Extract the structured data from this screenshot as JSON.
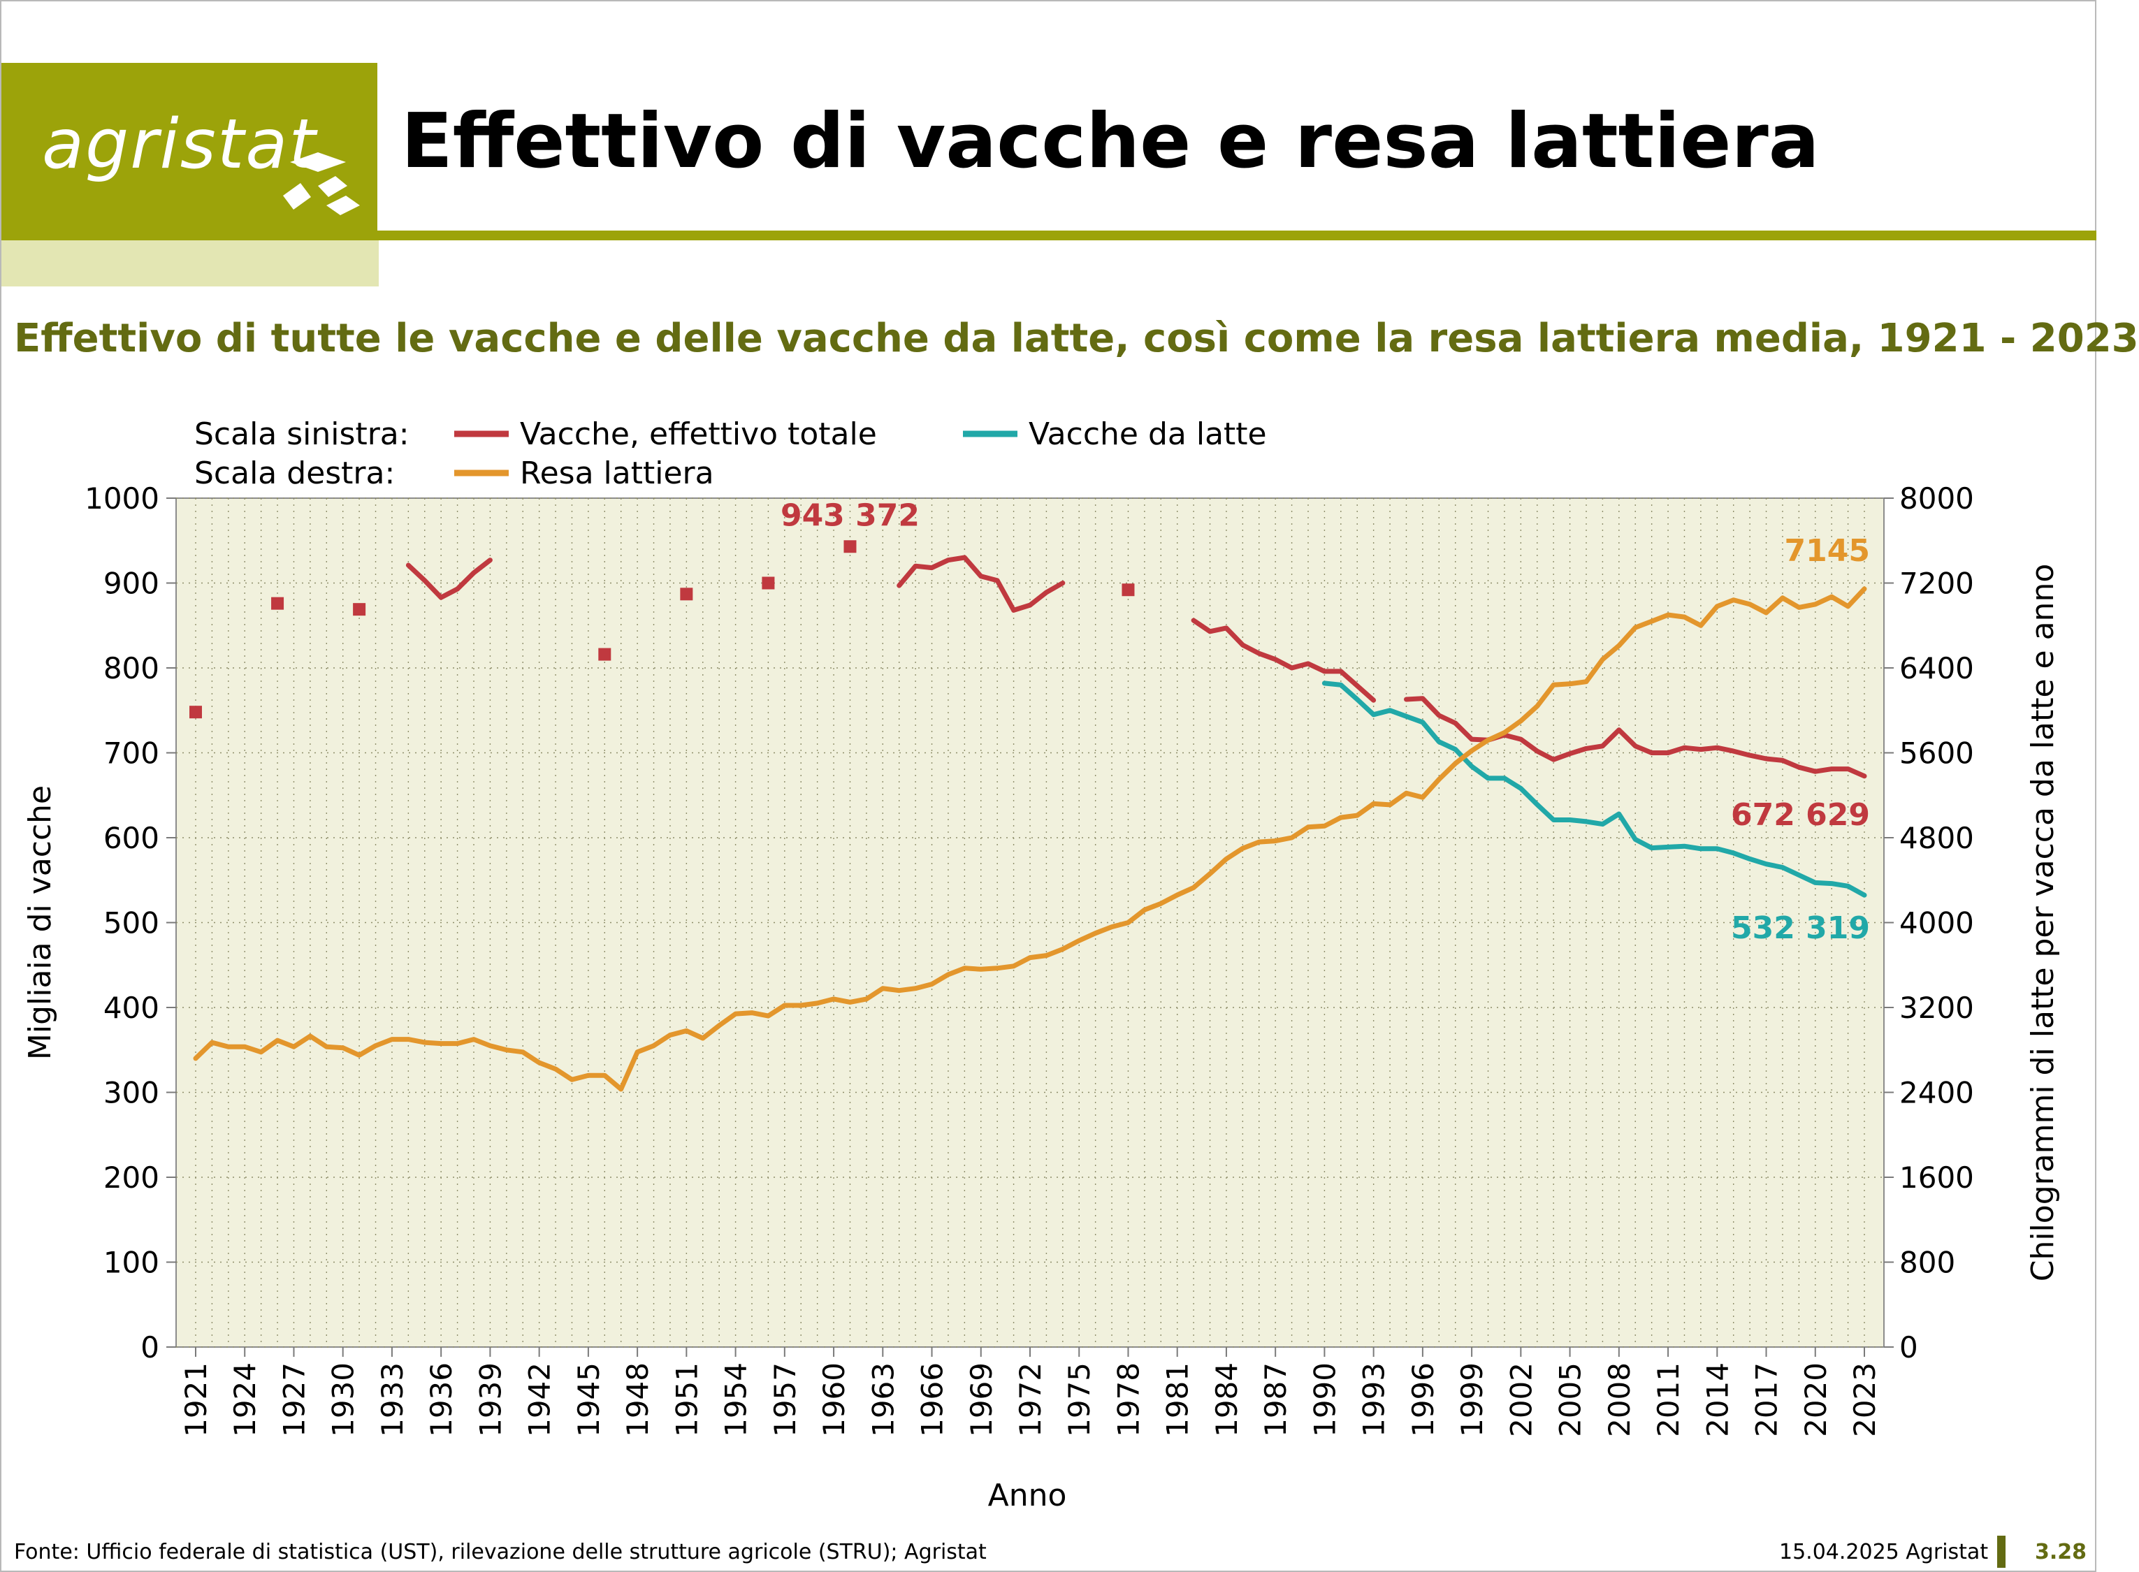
{
  "header": {
    "logo_text": "agristat",
    "title": "Effettivo di vacche e resa lattiera"
  },
  "colors": {
    "brand_olive": "#9ca30a",
    "title_green": "#636b12",
    "plot_bg": "#f1f1dd",
    "series_total": "#c0393f",
    "series_dairy": "#21a8a8",
    "series_yield": "#e3962c"
  },
  "footer": {
    "source": "Fonte: Ufficio federale di statistica (UST), rilevazione delle strutture agricole (STRU); Agristat",
    "date": "15.04.2025 Agristat",
    "page": "3.28"
  },
  "chart_data": {
    "type": "line",
    "title": "Effettivo di tutte le vacche e delle vacche da latte, così come la resa lattiera media, 1921 - 2023",
    "legend": {
      "left_scale_label": "Scala sinistra:",
      "right_scale_label": "Scala destra:"
    },
    "xlabel": "Anno",
    "ylabel_left": "Migliaia di vacche",
    "ylabel_right": "Chilogrammi di latte per vacca da latte e anno",
    "x_range": [
      1921,
      2023
    ],
    "x_ticks": [
      "1921",
      "1924",
      "1927",
      "1930",
      "1933",
      "1936",
      "1939",
      "1942",
      "1945",
      "1948",
      "1951",
      "1954",
      "1957",
      "1960",
      "1963",
      "1966",
      "1969",
      "1972",
      "1975",
      "1978",
      "1981",
      "1984",
      "1987",
      "1990",
      "1993",
      "1996",
      "1999",
      "2002",
      "2005",
      "2008",
      "2011",
      "2014",
      "2017",
      "2020",
      "2023"
    ],
    "y_left": {
      "min": 0,
      "max": 1000,
      "ticks": [
        "0",
        "100",
        "200",
        "300",
        "400",
        "500",
        "600",
        "700",
        "800",
        "900",
        "1000"
      ]
    },
    "y_right": {
      "min": 0,
      "max": 8000,
      "ticks": [
        "0",
        "800",
        "1600",
        "2400",
        "3200",
        "4000",
        "4800",
        "5600",
        "6400",
        "7200",
        "8000"
      ]
    },
    "grid": true,
    "series": [
      {
        "name": "Vacche, effettivo totale",
        "axis": "left",
        "color": "#c0393f",
        "points": [
          [
            1921,
            748
          ],
          [
            1926,
            876
          ],
          [
            1931,
            869
          ],
          [
            1934,
            921
          ],
          [
            1935,
            903
          ],
          [
            1936,
            883
          ],
          [
            1937,
            893
          ],
          [
            1938,
            912
          ],
          [
            1939,
            927
          ],
          [
            1946,
            816
          ],
          [
            1951,
            887
          ],
          [
            1956,
            900
          ],
          [
            1961,
            943
          ],
          [
            1964,
            897
          ],
          [
            1965,
            920
          ],
          [
            1966,
            918
          ],
          [
            1967,
            927
          ],
          [
            1968,
            930
          ],
          [
            1969,
            908
          ],
          [
            1970,
            903
          ],
          [
            1971,
            868
          ],
          [
            1972,
            874
          ],
          [
            1973,
            889
          ],
          [
            1974,
            900
          ],
          [
            1978,
            892
          ],
          [
            1982,
            856
          ],
          [
            1983,
            843
          ],
          [
            1984,
            847
          ],
          [
            1985,
            827
          ],
          [
            1986,
            817
          ],
          [
            1987,
            810
          ],
          [
            1988,
            800
          ],
          [
            1989,
            805
          ],
          [
            1990,
            796
          ],
          [
            1991,
            796
          ],
          [
            1992,
            779
          ],
          [
            1993,
            762
          ],
          [
            1995,
            763
          ],
          [
            1996,
            764
          ],
          [
            1997,
            744
          ],
          [
            1998,
            735
          ],
          [
            1999,
            716
          ],
          [
            2000,
            715
          ],
          [
            2001,
            721
          ],
          [
            2002,
            716
          ],
          [
            2003,
            702
          ],
          [
            2004,
            692
          ],
          [
            2005,
            699
          ],
          [
            2006,
            705
          ],
          [
            2007,
            708
          ],
          [
            2008,
            727
          ],
          [
            2009,
            708
          ],
          [
            2010,
            700
          ],
          [
            2011,
            700
          ],
          [
            2012,
            706
          ],
          [
            2013,
            704
          ],
          [
            2014,
            706
          ],
          [
            2015,
            702
          ],
          [
            2016,
            697
          ],
          [
            2017,
            693
          ],
          [
            2018,
            691
          ],
          [
            2019,
            683
          ],
          [
            2020,
            678
          ],
          [
            2021,
            681
          ],
          [
            2022,
            681
          ],
          [
            2023,
            672.629
          ]
        ]
      },
      {
        "name": "Vacche da latte",
        "axis": "left",
        "color": "#21a8a8",
        "points": [
          [
            1990,
            782
          ],
          [
            1991,
            780
          ],
          [
            1992,
            763
          ],
          [
            1993,
            745
          ],
          [
            1994,
            750
          ],
          [
            1995,
            743
          ],
          [
            1996,
            736
          ],
          [
            1997,
            713
          ],
          [
            1998,
            704
          ],
          [
            1999,
            684
          ],
          [
            2000,
            670
          ],
          [
            2001,
            670
          ],
          [
            2002,
            658
          ],
          [
            2003,
            639
          ],
          [
            2004,
            621
          ],
          [
            2005,
            621
          ],
          [
            2006,
            619
          ],
          [
            2007,
            616
          ],
          [
            2008,
            628
          ],
          [
            2009,
            598
          ],
          [
            2010,
            588
          ],
          [
            2011,
            589
          ],
          [
            2012,
            590
          ],
          [
            2013,
            587
          ],
          [
            2014,
            587
          ],
          [
            2015,
            582
          ],
          [
            2016,
            575
          ],
          [
            2017,
            569
          ],
          [
            2018,
            565
          ],
          [
            2019,
            556
          ],
          [
            2020,
            547
          ],
          [
            2021,
            546
          ],
          [
            2022,
            543
          ],
          [
            2023,
            532.319
          ]
        ]
      },
      {
        "name": "Resa lattiera",
        "axis": "right",
        "color": "#e3962c",
        "points": [
          [
            1921,
            2720
          ],
          [
            1922,
            2870
          ],
          [
            1923,
            2830
          ],
          [
            1924,
            2830
          ],
          [
            1925,
            2780
          ],
          [
            1926,
            2890
          ],
          [
            1927,
            2830
          ],
          [
            1928,
            2930
          ],
          [
            1929,
            2830
          ],
          [
            1930,
            2820
          ],
          [
            1931,
            2750
          ],
          [
            1932,
            2840
          ],
          [
            1933,
            2900
          ],
          [
            1934,
            2900
          ],
          [
            1935,
            2870
          ],
          [
            1936,
            2860
          ],
          [
            1937,
            2860
          ],
          [
            1938,
            2900
          ],
          [
            1939,
            2840
          ],
          [
            1940,
            2800
          ],
          [
            1941,
            2780
          ],
          [
            1942,
            2680
          ],
          [
            1943,
            2620
          ],
          [
            1944,
            2520
          ],
          [
            1945,
            2560
          ],
          [
            1946,
            2560
          ],
          [
            1947,
            2430
          ],
          [
            1948,
            2780
          ],
          [
            1949,
            2840
          ],
          [
            1950,
            2940
          ],
          [
            1951,
            2980
          ],
          [
            1952,
            2910
          ],
          [
            1953,
            3030
          ],
          [
            1954,
            3140
          ],
          [
            1955,
            3150
          ],
          [
            1956,
            3120
          ],
          [
            1957,
            3220
          ],
          [
            1958,
            3220
          ],
          [
            1959,
            3240
          ],
          [
            1960,
            3280
          ],
          [
            1961,
            3250
          ],
          [
            1962,
            3280
          ],
          [
            1963,
            3380
          ],
          [
            1964,
            3360
          ],
          [
            1965,
            3380
          ],
          [
            1966,
            3420
          ],
          [
            1967,
            3510
          ],
          [
            1968,
            3570
          ],
          [
            1969,
            3560
          ],
          [
            1970,
            3570
          ],
          [
            1971,
            3590
          ],
          [
            1972,
            3670
          ],
          [
            1973,
            3690
          ],
          [
            1974,
            3750
          ],
          [
            1975,
            3830
          ],
          [
            1976,
            3900
          ],
          [
            1977,
            3960
          ],
          [
            1978,
            4000
          ],
          [
            1979,
            4120
          ],
          [
            1980,
            4180
          ],
          [
            1981,
            4260
          ],
          [
            1982,
            4330
          ],
          [
            1983,
            4460
          ],
          [
            1984,
            4600
          ],
          [
            1985,
            4700
          ],
          [
            1986,
            4760
          ],
          [
            1987,
            4770
          ],
          [
            1988,
            4800
          ],
          [
            1989,
            4900
          ],
          [
            1990,
            4910
          ],
          [
            1991,
            4990
          ],
          [
            1992,
            5010
          ],
          [
            1993,
            5120
          ],
          [
            1994,
            5110
          ],
          [
            1995,
            5220
          ],
          [
            1996,
            5180
          ],
          [
            1997,
            5350
          ],
          [
            1998,
            5500
          ],
          [
            1999,
            5620
          ],
          [
            2000,
            5720
          ],
          [
            2001,
            5790
          ],
          [
            2002,
            5900
          ],
          [
            2003,
            6040
          ],
          [
            2004,
            6240
          ],
          [
            2005,
            6250
          ],
          [
            2006,
            6270
          ],
          [
            2007,
            6480
          ],
          [
            2008,
            6610
          ],
          [
            2009,
            6780
          ],
          [
            2010,
            6840
          ],
          [
            2011,
            6900
          ],
          [
            2012,
            6880
          ],
          [
            2013,
            6800
          ],
          [
            2014,
            6980
          ],
          [
            2015,
            7040
          ],
          [
            2016,
            7000
          ],
          [
            2017,
            6920
          ],
          [
            2018,
            7060
          ],
          [
            2019,
            6970
          ],
          [
            2020,
            7000
          ],
          [
            2021,
            7070
          ],
          [
            2022,
            6980
          ],
          [
            2023,
            7145
          ]
        ]
      }
    ],
    "annotations": [
      {
        "text": "943 372",
        "color": "#c0393f",
        "x": 1961,
        "y": 943,
        "axis": "left",
        "anchor": "middle"
      },
      {
        "text": "7145",
        "color": "#e3962c",
        "x": 2023,
        "y": 7145,
        "axis": "right",
        "anchor": "end"
      },
      {
        "text": "672 629",
        "color": "#c0393f",
        "x": 2023,
        "y": 672.629,
        "axis": "left",
        "anchor": "end"
      },
      {
        "text": "532 319",
        "color": "#21a8a8",
        "x": 2023,
        "y": 532.319,
        "axis": "left",
        "anchor": "end"
      }
    ]
  }
}
